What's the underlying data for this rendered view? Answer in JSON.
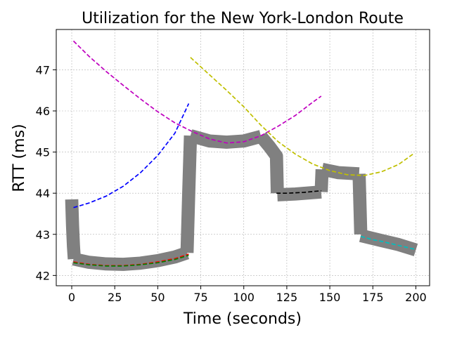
{
  "chart_data": {
    "type": "line",
    "title": "Utilization for the New York-London Route",
    "xlabel": "Time (seconds)",
    "ylabel": "RTT (ms)",
    "xlim": [
      -9,
      208
    ],
    "ylim": [
      41.75,
      47.98
    ],
    "xticks": [
      0,
      25,
      50,
      75,
      100,
      125,
      150,
      175,
      200
    ],
    "yticks": [
      42,
      43,
      44,
      45,
      46,
      47
    ],
    "grid": true,
    "legend": "none",
    "measured_band": {
      "color": "#808080",
      "width": 0.32,
      "segments": [
        {
          "x": [
            0,
            0.5,
            1,
            1.5
          ],
          "y": [
            43.85,
            43.2,
            42.7,
            42.4
          ]
        },
        {
          "x": [
            1,
            10,
            20,
            30,
            40,
            50,
            60,
            67
          ],
          "y": [
            42.4,
            42.32,
            42.28,
            42.27,
            42.3,
            42.36,
            42.45,
            42.55
          ]
        },
        {
          "x": [
            67,
            68,
            69
          ],
          "y": [
            42.55,
            44.0,
            45.4
          ]
        },
        {
          "x": [
            69,
            80,
            90,
            100,
            110
          ],
          "y": [
            45.4,
            45.27,
            45.24,
            45.27,
            45.38
          ]
        },
        {
          "x": [
            110,
            115,
            119,
            119.5
          ],
          "y": [
            45.38,
            45.13,
            44.9,
            44.0
          ]
        },
        {
          "x": [
            119.5,
            130,
            145
          ],
          "y": [
            43.96,
            43.98,
            44.03
          ]
        },
        {
          "x": [
            145,
            145.5
          ],
          "y": [
            44.03,
            44.58
          ]
        },
        {
          "x": [
            145.5,
            155,
            167
          ],
          "y": [
            44.58,
            44.5,
            44.47
          ]
        },
        {
          "x": [
            167,
            168
          ],
          "y": [
            44.47,
            43.0
          ]
        },
        {
          "x": [
            168,
            180,
            190,
            200
          ],
          "y": [
            42.97,
            42.85,
            42.75,
            42.62
          ]
        }
      ]
    },
    "series": [
      {
        "color": "#ff0000",
        "x": [
          1,
          10,
          20,
          30,
          40,
          50,
          60,
          68
        ],
        "y": [
          42.33,
          42.27,
          42.24,
          42.24,
          42.27,
          42.33,
          42.41,
          42.52
        ]
      },
      {
        "color": "#008000",
        "x": [
          1,
          10,
          20,
          30,
          40,
          50,
          60,
          68
        ],
        "y": [
          42.31,
          42.26,
          42.23,
          42.23,
          42.26,
          42.31,
          42.39,
          42.49
        ]
      },
      {
        "color": "#0000ff",
        "x": [
          1,
          10,
          20,
          30,
          40,
          50,
          60,
          68
        ],
        "y": [
          43.65,
          43.76,
          43.93,
          44.17,
          44.5,
          44.92,
          45.46,
          46.18
        ]
      },
      {
        "color": "#bf00bf",
        "x": [
          1,
          10,
          20,
          30,
          40,
          50,
          60,
          70,
          80,
          90,
          100,
          110,
          120,
          130,
          140,
          145
        ],
        "y": [
          47.7,
          47.33,
          46.96,
          46.62,
          46.29,
          45.98,
          45.71,
          45.5,
          45.32,
          45.22,
          45.25,
          45.4,
          45.63,
          45.89,
          46.21,
          46.36
        ]
      },
      {
        "color": "#bfbf00",
        "x": [
          69,
          80,
          90,
          100,
          110,
          120,
          130,
          140,
          150,
          160,
          170,
          180,
          190,
          199
        ],
        "y": [
          47.3,
          46.88,
          46.5,
          46.1,
          45.65,
          45.25,
          44.95,
          44.71,
          44.55,
          44.45,
          44.43,
          44.52,
          44.7,
          44.97
        ]
      },
      {
        "color": "#000000",
        "x": [
          119,
          125,
          130,
          135,
          140,
          145
        ],
        "y": [
          44.0,
          44.0,
          44.01,
          44.02,
          44.04,
          44.06
        ]
      },
      {
        "color": "#00bfbf",
        "x": [
          168,
          175,
          180,
          185,
          190,
          195,
          200
        ],
        "y": [
          42.95,
          42.87,
          42.83,
          42.78,
          42.73,
          42.68,
          42.63
        ]
      }
    ]
  }
}
